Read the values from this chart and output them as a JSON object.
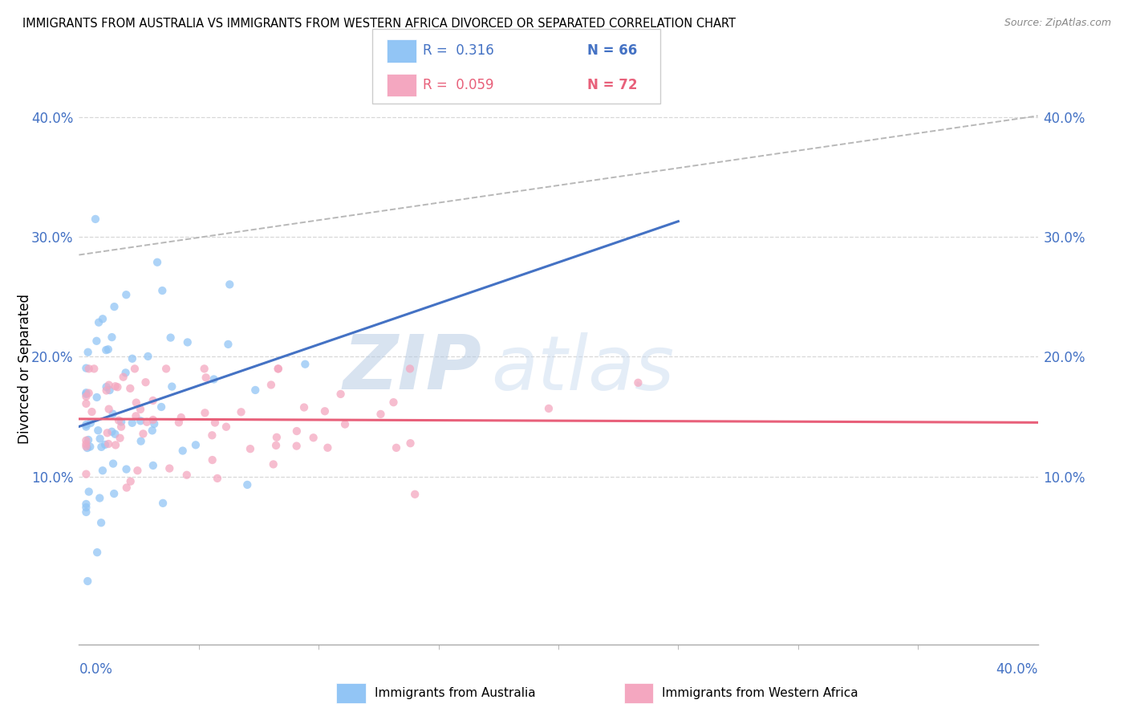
{
  "title": "IMMIGRANTS FROM AUSTRALIA VS IMMIGRANTS FROM WESTERN AFRICA DIVORCED OR SEPARATED CORRELATION CHART",
  "source": "Source: ZipAtlas.com",
  "ylabel": "Divorced or Separated",
  "xmin": 0.0,
  "xmax": 0.4,
  "ymin": -0.04,
  "ymax": 0.42,
  "yticks": [
    0.1,
    0.2,
    0.3,
    0.4
  ],
  "ytick_labels": [
    "10.0%",
    "20.0%",
    "30.0%",
    "40.0%"
  ],
  "xtick_labels_bottom": [
    "0.0%",
    "40.0%"
  ],
  "watermark_zip": "ZIP",
  "watermark_atlas": "atlas",
  "legend_r_australia": "R =  0.316",
  "legend_n_australia": "N = 66",
  "legend_r_western_africa": "R =  0.059",
  "legend_n_western_africa": "N = 72",
  "australia_color": "#92c5f5",
  "western_africa_color": "#f4a7c0",
  "australia_line_color": "#4472c4",
  "western_africa_line_color": "#e8607a",
  "dashed_line_color": "#b8b8b8",
  "tick_color": "#4472c4",
  "grid_color": "#d8d8d8",
  "australia_R": 0.316,
  "western_africa_R": 0.059,
  "aus_seed": 77,
  "waf_seed": 55
}
